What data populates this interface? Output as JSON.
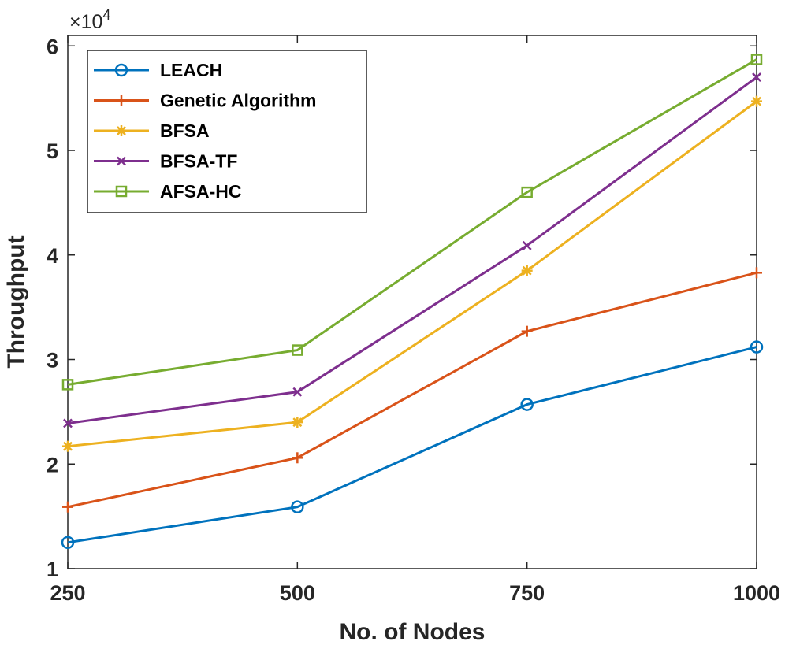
{
  "chart_data": {
    "type": "line",
    "title": "",
    "xlabel": "No. of Nodes",
    "ylabel": "Throughput",
    "y_exponent_label": "×10",
    "y_exponent_power": "4",
    "x": [
      250,
      500,
      750,
      1000
    ],
    "x_tick_labels": [
      "250",
      "500",
      "750",
      "1000"
    ],
    "y_ticks": [
      10000,
      20000,
      30000,
      40000,
      50000,
      60000
    ],
    "y_tick_labels": [
      "1",
      "2",
      "3",
      "4",
      "5",
      "6"
    ],
    "xlim": [
      250,
      1000
    ],
    "ylim": [
      10000,
      61000
    ],
    "grid": false,
    "legend_position": "top-left",
    "series": [
      {
        "name": "LEACH",
        "values": [
          12500,
          15900,
          25700,
          31200
        ],
        "color": "#0072BD",
        "marker": "circle"
      },
      {
        "name": "Genetic Algorithm",
        "values": [
          15900,
          20600,
          32700,
          38300
        ],
        "color": "#D95319",
        "marker": "plus"
      },
      {
        "name": "BFSA",
        "values": [
          21700,
          24000,
          38500,
          54700
        ],
        "color": "#EDB120",
        "marker": "asterisk"
      },
      {
        "name": "BFSA-TF",
        "values": [
          23900,
          26900,
          40900,
          57000
        ],
        "color": "#7E2F8E",
        "marker": "x"
      },
      {
        "name": "AFSA-HC",
        "values": [
          27600,
          30900,
          46000,
          58700
        ],
        "color": "#77AC30",
        "marker": "square"
      }
    ]
  }
}
